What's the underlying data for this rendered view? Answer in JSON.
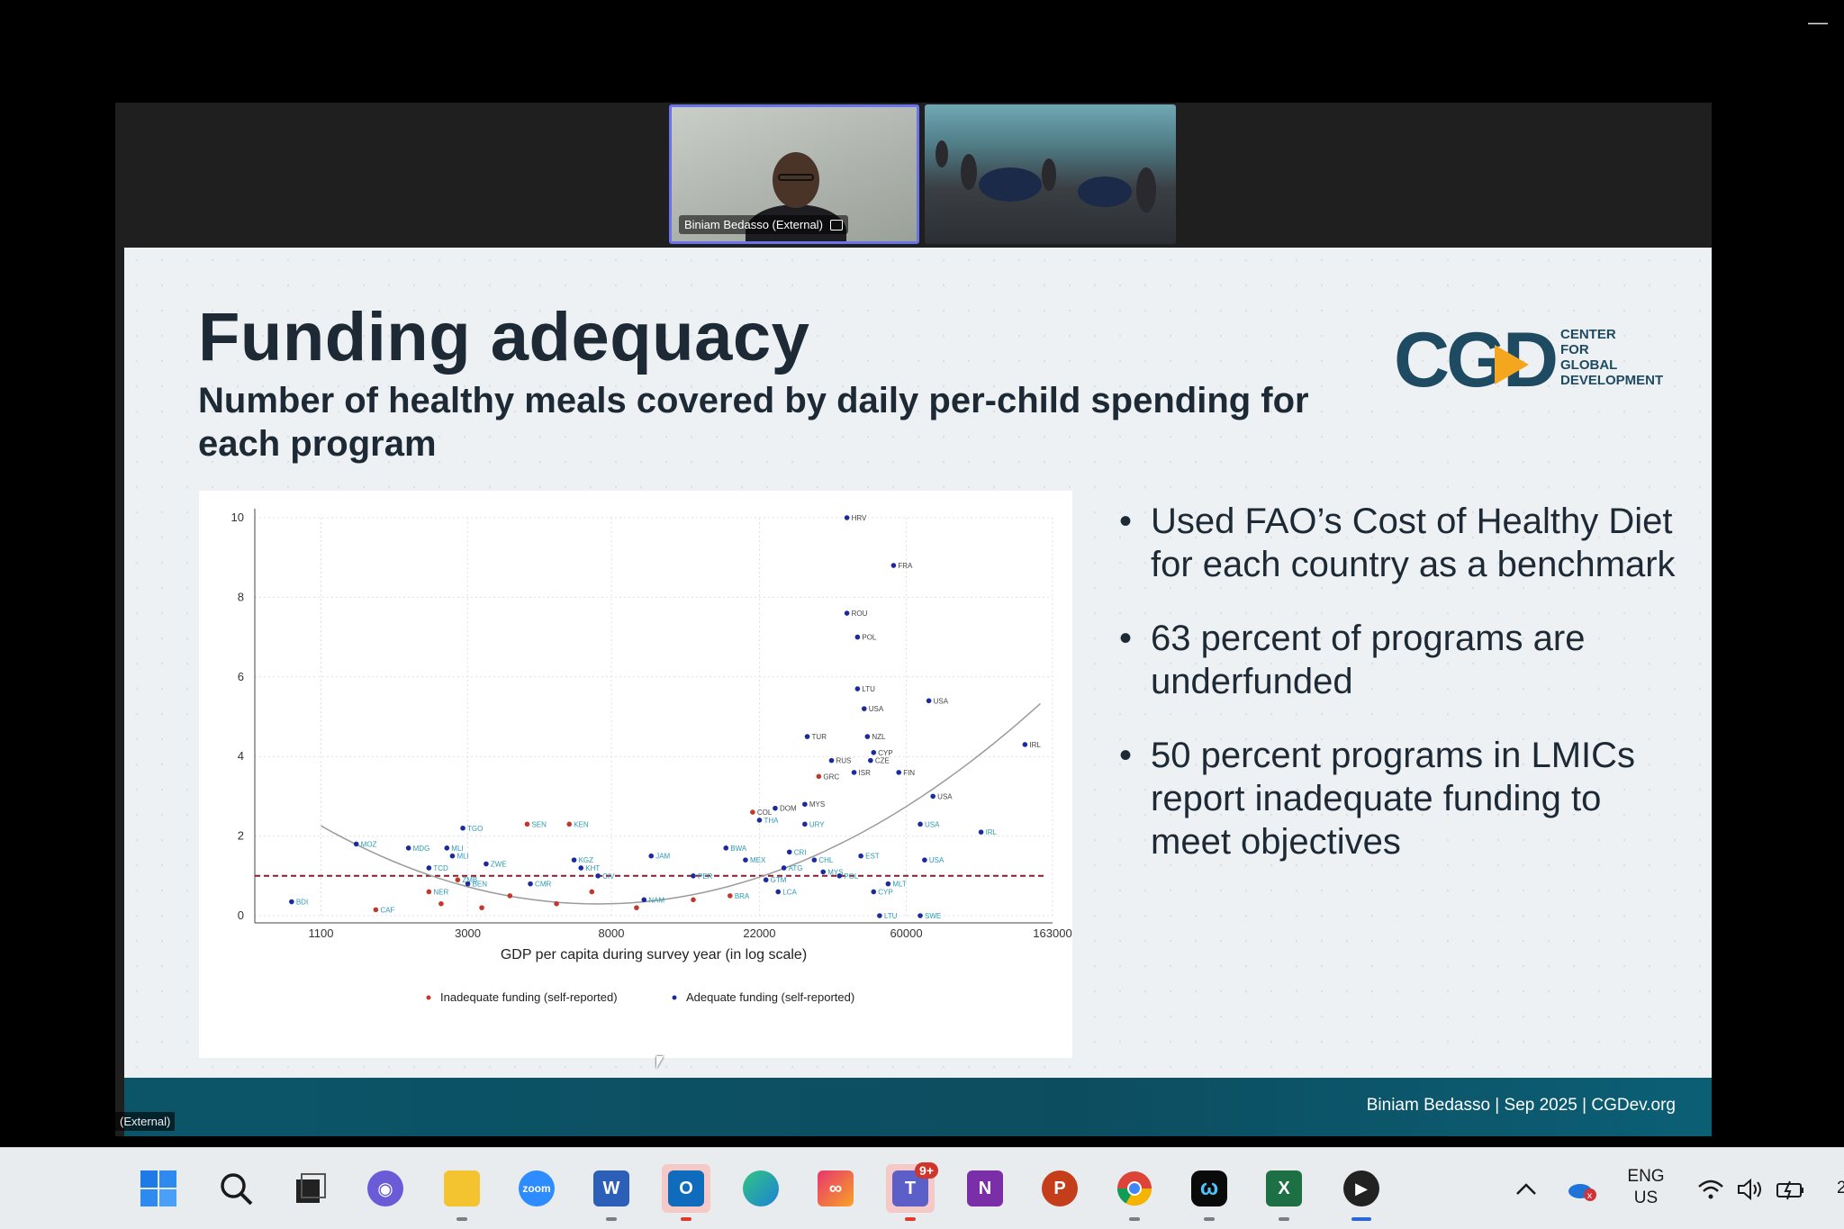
{
  "window": {
    "minimize_glyph": "—"
  },
  "videos": {
    "speaker_label": "Biniam Bedasso (External)",
    "external_tag": "(External)"
  },
  "slide": {
    "title": "Funding adequacy",
    "subtitle": "Number of healthy meals covered by daily per-child spending for each program",
    "logo": {
      "mark": "CGD",
      "lines": [
        "CENTER",
        "FOR",
        "GLOBAL",
        "DEVELOPMENT"
      ]
    },
    "bullets": [
      "Used FAO’s Cost of Healthy Diet for each country as a benchmark",
      "63 percent of programs are underfunded",
      "50 percent programs in LMICs report inadequate funding to meet objectives"
    ],
    "footer": "Biniam Bedasso | Sep 2025 | CGDev.org"
  },
  "chart_data": {
    "type": "scatter",
    "xlabel": "GDP per capita during survey year (in log scale)",
    "ylabel": "",
    "x_scale": "log",
    "x_ticks": [
      1100,
      3000,
      8000,
      22000,
      60000,
      163000
    ],
    "y_ticks": [
      0,
      2,
      4,
      6,
      8,
      10
    ],
    "xlim": [
      700,
      163000
    ],
    "ylim": [
      0,
      10
    ],
    "grid": true,
    "reference_line": {
      "y": 1,
      "style": "dashed",
      "color": "#8b1a2b"
    },
    "legend_placement": "bottom",
    "colors": {
      "inadequate": "#c0392b",
      "adequate": "#1b2a9e",
      "label": "#2a9ab5",
      "fit": "#9a9a9a"
    },
    "series": [
      {
        "name": "Inadequate funding (self-reported)",
        "points": [
          {
            "x": 1600,
            "y": 0.15,
            "label": "CAF"
          },
          {
            "x": 2300,
            "y": 0.6,
            "label": "NER"
          },
          {
            "x": 2500,
            "y": 0.3,
            "label": ""
          },
          {
            "x": 2800,
            "y": 0.9,
            "label": "ZMB"
          },
          {
            "x": 3300,
            "y": 0.2,
            "label": ""
          },
          {
            "x": 4000,
            "y": 0.5,
            "label": ""
          },
          {
            "x": 4500,
            "y": 2.3,
            "label": "SEN"
          },
          {
            "x": 5500,
            "y": 0.3,
            "label": ""
          },
          {
            "x": 6000,
            "y": 2.3,
            "label": "KEN"
          },
          {
            "x": 7000,
            "y": 0.6,
            "label": ""
          },
          {
            "x": 9500,
            "y": 0.2,
            "label": ""
          },
          {
            "x": 14000,
            "y": 0.4,
            "label": ""
          },
          {
            "x": 18000,
            "y": 0.5,
            "label": "BRA"
          },
          {
            "x": 21000,
            "y": 2.6,
            "label": "COL"
          },
          {
            "x": 33000,
            "y": 3.5,
            "label": "GRC"
          }
        ]
      },
      {
        "name": "Adequate funding (self-reported)",
        "points": [
          {
            "x": 900,
            "y": 0.35,
            "label": "BDI"
          },
          {
            "x": 1400,
            "y": 1.8,
            "label": "MOZ"
          },
          {
            "x": 2000,
            "y": 1.7,
            "label": "MDG"
          },
          {
            "x": 2300,
            "y": 1.2,
            "label": "TCD"
          },
          {
            "x": 2600,
            "y": 1.7,
            "label": "MLI"
          },
          {
            "x": 2700,
            "y": 1.5,
            "label": "MLI"
          },
          {
            "x": 2900,
            "y": 2.2,
            "label": "TGO"
          },
          {
            "x": 3400,
            "y": 1.3,
            "label": "ZWE"
          },
          {
            "x": 3000,
            "y": 0.8,
            "label": "BEN"
          },
          {
            "x": 4600,
            "y": 0.8,
            "label": "CMR"
          },
          {
            "x": 6500,
            "y": 1.2,
            "label": "KHT"
          },
          {
            "x": 6200,
            "y": 1.4,
            "label": "KGZ"
          },
          {
            "x": 7300,
            "y": 1.0,
            "label": "CIV"
          },
          {
            "x": 10500,
            "y": 1.5,
            "label": "JAM"
          },
          {
            "x": 10000,
            "y": 0.4,
            "label": "NAM"
          },
          {
            "x": 14000,
            "y": 1.0,
            "label": "PER"
          },
          {
            "x": 17500,
            "y": 1.7,
            "label": "BWA"
          },
          {
            "x": 20000,
            "y": 1.4,
            "label": "MEX"
          },
          {
            "x": 22000,
            "y": 2.4,
            "label": "THA"
          },
          {
            "x": 23000,
            "y": 0.9,
            "label": "GTM"
          },
          {
            "x": 24500,
            "y": 2.7,
            "label": "DOM"
          },
          {
            "x": 25000,
            "y": 0.6,
            "label": "LCA"
          },
          {
            "x": 26000,
            "y": 1.2,
            "label": "ATG"
          },
          {
            "x": 27000,
            "y": 1.6,
            "label": "CRI"
          },
          {
            "x": 30000,
            "y": 2.3,
            "label": "URY"
          },
          {
            "x": 30000,
            "y": 2.8,
            "label": "MYS"
          },
          {
            "x": 30500,
            "y": 4.5,
            "label": "TUR"
          },
          {
            "x": 32000,
            "y": 1.4,
            "label": "CHL"
          },
          {
            "x": 34000,
            "y": 1.1,
            "label": "MYS"
          },
          {
            "x": 36000,
            "y": 3.9,
            "label": "RUS"
          },
          {
            "x": 38000,
            "y": 1.0,
            "label": "POL"
          },
          {
            "x": 40000,
            "y": 10.0,
            "label": "HRV"
          },
          {
            "x": 40000,
            "y": 7.6,
            "label": "ROU"
          },
          {
            "x": 42000,
            "y": 3.6,
            "label": "ISR"
          },
          {
            "x": 43000,
            "y": 7.0,
            "label": "POL"
          },
          {
            "x": 43000,
            "y": 5.7,
            "label": "LTU"
          },
          {
            "x": 44000,
            "y": 1.5,
            "label": "EST"
          },
          {
            "x": 45000,
            "y": 5.2,
            "label": "USA"
          },
          {
            "x": 46000,
            "y": 4.5,
            "label": "NZL"
          },
          {
            "x": 47000,
            "y": 3.9,
            "label": "CZE"
          },
          {
            "x": 48000,
            "y": 4.1,
            "label": "CYP"
          },
          {
            "x": 48000,
            "y": 0.6,
            "label": "CYP"
          },
          {
            "x": 50000,
            "y": 0.0,
            "label": "LTU"
          },
          {
            "x": 53000,
            "y": 0.8,
            "label": "MLT"
          },
          {
            "x": 55000,
            "y": 8.8,
            "label": "FRA"
          },
          {
            "x": 57000,
            "y": 3.6,
            "label": "FIN"
          },
          {
            "x": 66000,
            "y": 2.3,
            "label": "USA"
          },
          {
            "x": 68000,
            "y": 1.4,
            "label": "USA"
          },
          {
            "x": 70000,
            "y": 5.4,
            "label": "USA"
          },
          {
            "x": 72000,
            "y": 3.0,
            "label": "USA"
          },
          {
            "x": 66000,
            "y": 0.0,
            "label": "SWE"
          },
          {
            "x": 100000,
            "y": 2.1,
            "label": "IRL"
          },
          {
            "x": 135000,
            "y": 4.3,
            "label": "IRL"
          }
        ]
      }
    ]
  },
  "taskbar": {
    "items": [
      {
        "name": "start",
        "label": ""
      },
      {
        "name": "search",
        "label": ""
      },
      {
        "name": "task-view",
        "label": ""
      },
      {
        "name": "chat",
        "label": ""
      },
      {
        "name": "file-explorer",
        "label": ""
      },
      {
        "name": "zoom",
        "label": "zoom"
      },
      {
        "name": "word",
        "label": "W"
      },
      {
        "name": "outlook",
        "label": "O"
      },
      {
        "name": "edge",
        "label": ""
      },
      {
        "name": "creative-cloud",
        "label": ""
      },
      {
        "name": "teams",
        "label": "T",
        "badge": "9+"
      },
      {
        "name": "onenote",
        "label": "N"
      },
      {
        "name": "powerpoint",
        "label": "P"
      },
      {
        "name": "chrome",
        "label": ""
      },
      {
        "name": "webex",
        "label": ""
      },
      {
        "name": "excel",
        "label": "X"
      },
      {
        "name": "media-player",
        "label": ""
      }
    ],
    "lang_line1": "ENG",
    "lang_line2": "US",
    "clock_fragment": "2"
  }
}
